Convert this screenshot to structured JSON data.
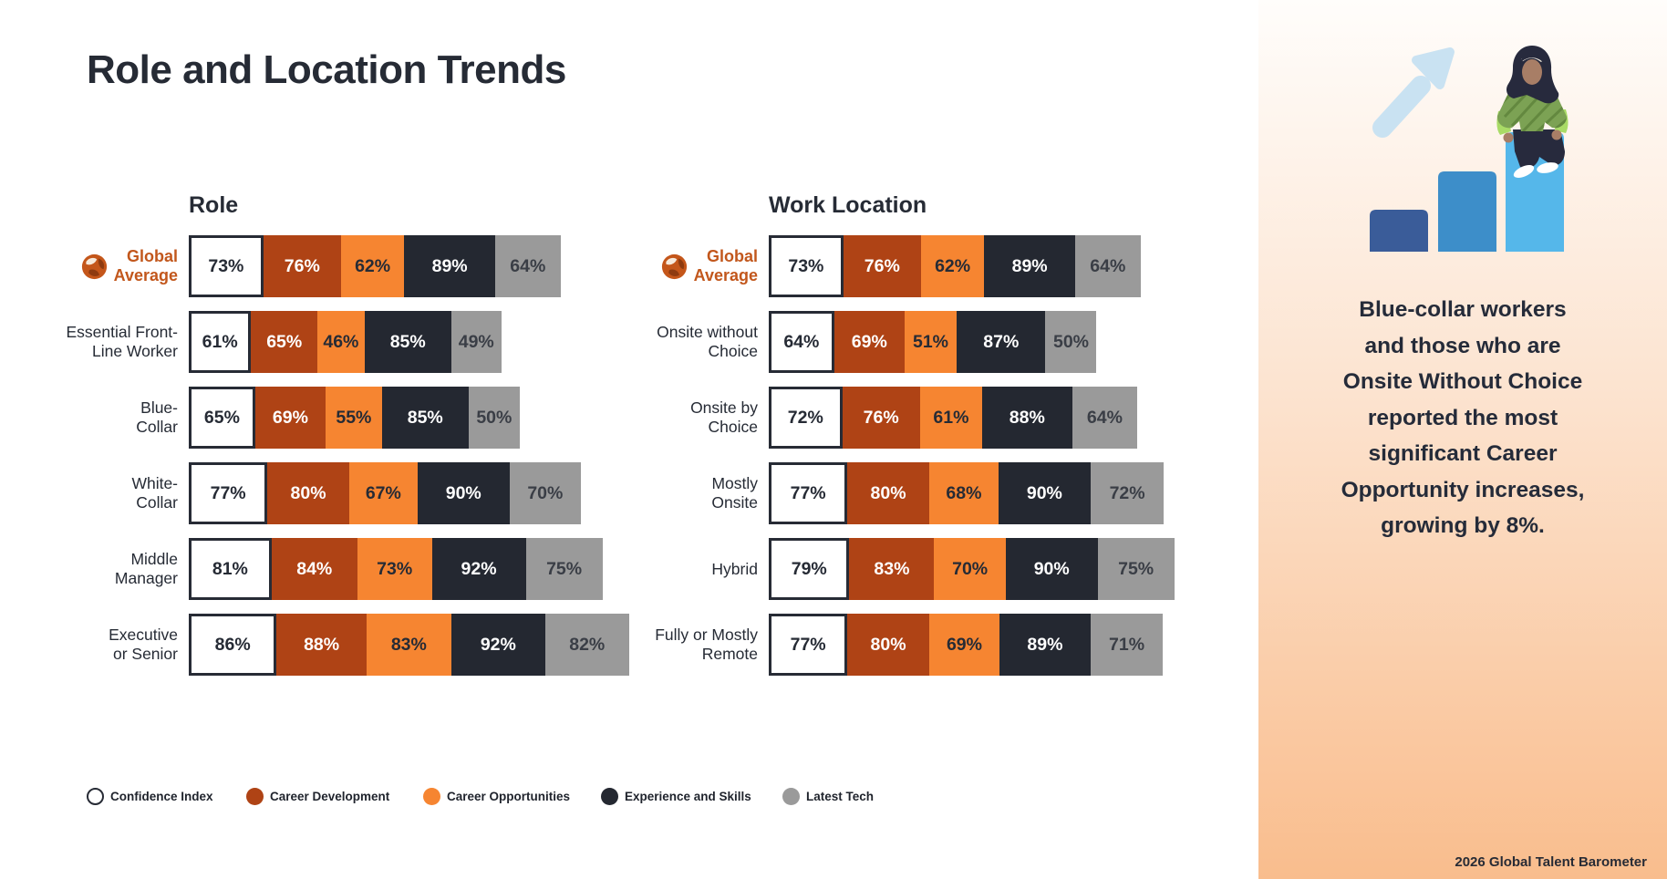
{
  "page_title": "Role and Location Trends",
  "legend": {
    "items": [
      {
        "label": "Confidence Index",
        "color": "#FFFFFF",
        "text_color": "#262B35",
        "border": "#272B35"
      },
      {
        "label": "Career Development",
        "color": "#AF4315",
        "text_color": "#FFFFFF"
      },
      {
        "label": "Career Opportunities",
        "color": "#F68531",
        "text_color": "#262B35"
      },
      {
        "label": "Experience and Skills",
        "color": "#242831",
        "text_color": "#FFFFFF"
      },
      {
        "label": "Latest Tech",
        "color": "#9A9A9A",
        "text_color": "#3A3E46"
      }
    ]
  },
  "chart_data": [
    {
      "type": "bar",
      "title": "Role",
      "orientation": "horizontal-stacked",
      "value_format": "percent",
      "series_names": [
        "Confidence Index",
        "Career Development",
        "Career Opportunities",
        "Experience and Skills",
        "Latest Tech"
      ],
      "rows": [
        {
          "category": "Global Average",
          "label_lines": [
            "Global",
            "Average"
          ],
          "is_global_average": true,
          "values": [
            73,
            76,
            62,
            89,
            64
          ]
        },
        {
          "category": "Essential Front-Line Worker",
          "label_lines": [
            "Essential Front-",
            "Line Worker"
          ],
          "is_global_average": false,
          "values": [
            61,
            65,
            46,
            85,
            49
          ]
        },
        {
          "category": "Blue-Collar",
          "label_lines": [
            "Blue-",
            "Collar"
          ],
          "is_global_average": false,
          "values": [
            65,
            69,
            55,
            85,
            50
          ]
        },
        {
          "category": "White-Collar",
          "label_lines": [
            "White-",
            "Collar"
          ],
          "is_global_average": false,
          "values": [
            77,
            80,
            67,
            90,
            70
          ]
        },
        {
          "category": "Middle Manager",
          "label_lines": [
            "Middle",
            "Manager"
          ],
          "is_global_average": false,
          "values": [
            81,
            84,
            73,
            92,
            75
          ]
        },
        {
          "category": "Executive or Senior",
          "label_lines": [
            "Executive",
            "or Senior"
          ],
          "is_global_average": false,
          "values": [
            86,
            88,
            83,
            92,
            82
          ]
        }
      ]
    },
    {
      "type": "bar",
      "title": "Work Location",
      "orientation": "horizontal-stacked",
      "value_format": "percent",
      "series_names": [
        "Confidence Index",
        "Career Development",
        "Career Opportunities",
        "Experience and Skills",
        "Latest Tech"
      ],
      "rows": [
        {
          "category": "Global Average",
          "label_lines": [
            "Global",
            "Average"
          ],
          "is_global_average": true,
          "values": [
            73,
            76,
            62,
            89,
            64
          ]
        },
        {
          "category": "Onsite without Choice",
          "label_lines": [
            "Onsite without",
            "Choice"
          ],
          "is_global_average": false,
          "values": [
            64,
            69,
            51,
            87,
            50
          ]
        },
        {
          "category": "Onsite by Choice",
          "label_lines": [
            "Onsite by",
            "Choice"
          ],
          "is_global_average": false,
          "values": [
            72,
            76,
            61,
            88,
            64
          ]
        },
        {
          "category": "Mostly Onsite",
          "label_lines": [
            "Mostly",
            "Onsite"
          ],
          "is_global_average": false,
          "values": [
            77,
            80,
            68,
            90,
            72
          ]
        },
        {
          "category": "Hybrid",
          "label_lines": [
            "Hybrid"
          ],
          "is_global_average": false,
          "values": [
            79,
            83,
            70,
            90,
            75
          ]
        },
        {
          "category": "Fully or Mostly Remote",
          "label_lines": [
            "Fully or Mostly",
            "Remote"
          ],
          "is_global_average": false,
          "values": [
            77,
            80,
            69,
            89,
            71
          ]
        }
      ]
    }
  ],
  "sidebar": {
    "callout_lines": [
      "Blue-collar workers",
      "and those who are",
      "Onsite Without Choice",
      "reported the most",
      "significant Career",
      "Opportunity increases,",
      "growing by 8%."
    ],
    "footer": "2026 Global Talent Barometer",
    "background_gradient": [
      "#FFFDFB",
      "#FCE3CF",
      "#F9BD8D"
    ],
    "illustration": "person-in-hijab-sitting-on-rising-bar-chart-with-up-arrow"
  },
  "colors": {
    "title_text": "#262B35",
    "global_average_text": "#C2571C",
    "callout_text": "#252B39"
  }
}
